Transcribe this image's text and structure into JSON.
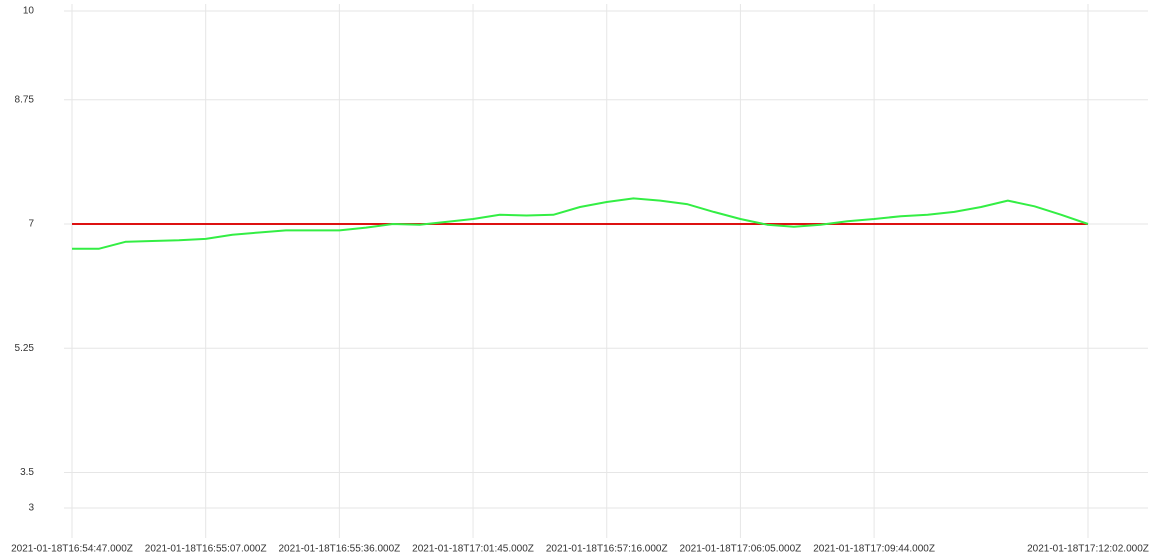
{
  "chart_data": {
    "type": "line",
    "categories": [
      "2021-01-18T16:54:47.000Z",
      null,
      null,
      null,
      null,
      "2021-01-18T16:55:07.000Z",
      null,
      null,
      null,
      null,
      "2021-01-18T16:55:36.000Z",
      null,
      null,
      null,
      null,
      "2021-01-18T17:01:45.000Z",
      null,
      null,
      null,
      null,
      "2021-01-18T16:57:16.000Z",
      null,
      null,
      null,
      null,
      "2021-01-18T17:06:05.000Z",
      null,
      null,
      null,
      null,
      "2021-01-18T17:09:44.000Z",
      null,
      null,
      null,
      null,
      null,
      null,
      null,
      "2021-01-18T17:12:02.000Z"
    ],
    "series": [
      {
        "color": "#33ee44",
        "values": [
          6.65,
          6.65,
          6.75,
          6.76,
          6.77,
          6.79,
          6.85,
          6.88,
          6.91,
          6.91,
          6.91,
          6.95,
          7.0,
          6.99,
          7.03,
          7.07,
          7.13,
          7.12,
          7.13,
          7.24,
          7.31,
          7.36,
          7.33,
          7.28,
          7.17,
          7.07,
          6.99,
          6.96,
          6.99,
          7.04,
          7.07,
          7.11,
          7.13,
          7.17,
          7.24,
          7.33,
          7.25,
          7.13,
          7.0
        ]
      },
      {
        "color": "#dd1111",
        "values": [
          7,
          7,
          7,
          7,
          7,
          7,
          7,
          7,
          7,
          7,
          7,
          7,
          7,
          7,
          7,
          7,
          7,
          7,
          7,
          7,
          7,
          7,
          7,
          7,
          7,
          7,
          7,
          7,
          7,
          7,
          7,
          7,
          7,
          7,
          7,
          7,
          7,
          7,
          7
        ]
      }
    ],
    "ylim": [
      3,
      10
    ],
    "yticks": [
      3,
      3.5,
      5.25,
      7,
      8.75,
      10
    ],
    "grid": true
  }
}
